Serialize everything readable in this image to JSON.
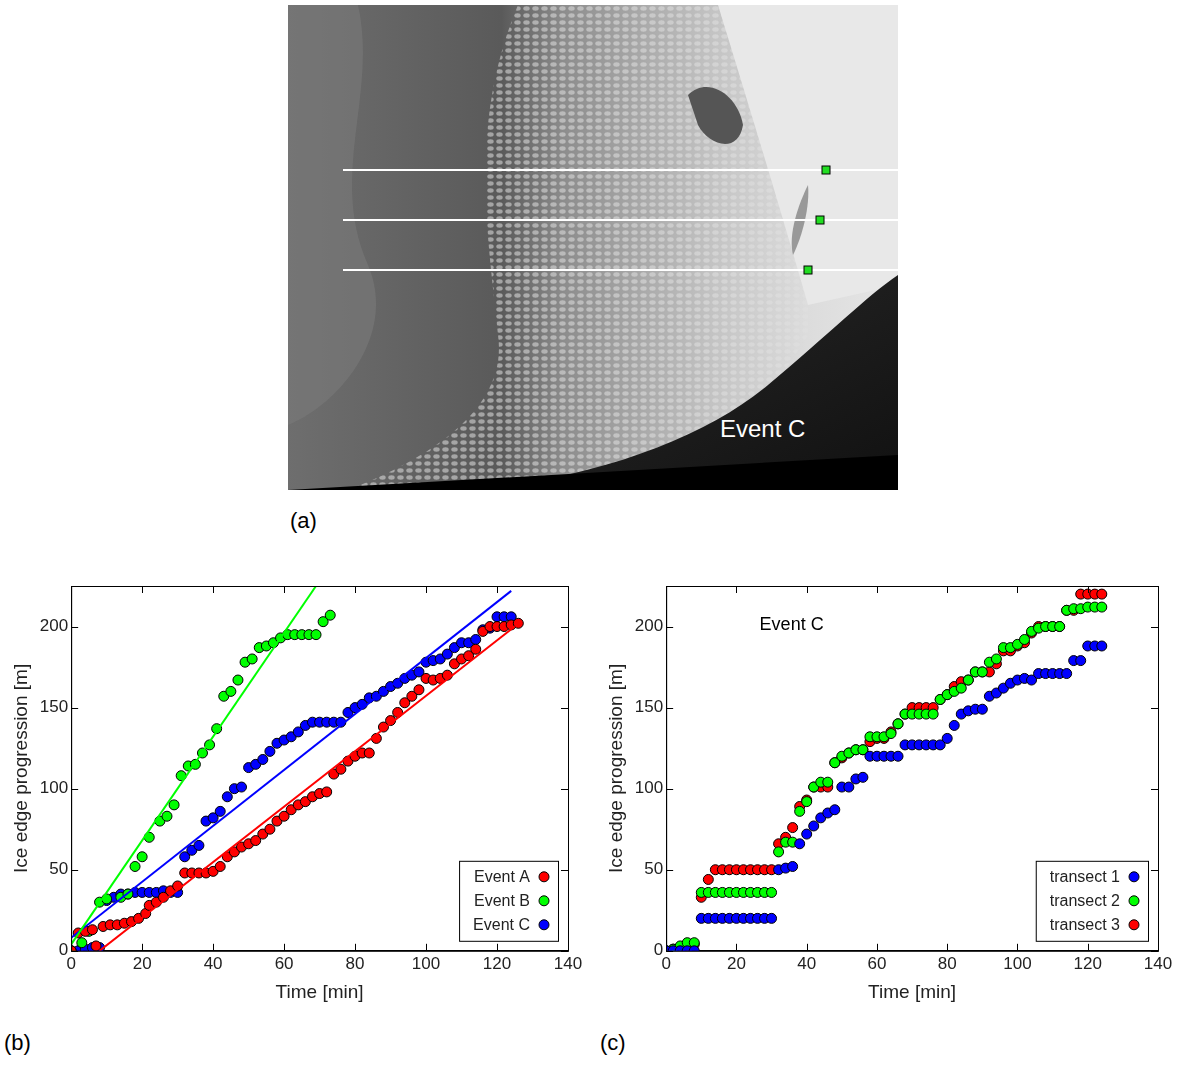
{
  "image_panel": {
    "panel_label": "(a)",
    "annotation": "Event C"
  },
  "chart_data": [
    {
      "type": "scatter",
      "panel_label": "(b)",
      "x_label": "Time [min]",
      "y_label": "Ice edge progression [m]",
      "xlim": [
        0,
        140
      ],
      "xticks": [
        0,
        20,
        40,
        60,
        80,
        100,
        120,
        140
      ],
      "ylim": [
        0,
        225
      ],
      "yticks": [
        0,
        50,
        100,
        150,
        200
      ],
      "grid": false,
      "legend": "lower right",
      "series": [
        {
          "name": "Event A",
          "color": "#ff0000",
          "marker": "circle",
          "x": [
            0,
            2,
            4,
            6,
            7,
            9,
            11,
            13,
            15,
            17,
            19,
            21,
            22,
            24,
            26,
            28,
            30,
            32,
            34,
            36,
            38,
            40,
            42,
            44,
            46,
            48,
            50,
            52,
            54,
            56,
            58,
            60,
            62,
            64,
            66,
            68,
            70,
            72,
            74,
            76,
            78,
            80,
            82,
            84,
            86,
            88,
            90,
            92,
            94,
            96,
            98,
            100,
            102,
            104,
            106,
            108,
            110,
            112,
            114,
            116,
            118,
            120,
            122,
            124,
            126
          ],
          "values": [
            0,
            11,
            12,
            13,
            3,
            15,
            16,
            16,
            17,
            18,
            20,
            23,
            28,
            30,
            33,
            37,
            40,
            48,
            48,
            48,
            48,
            49,
            52,
            58,
            61,
            64,
            66,
            68,
            72,
            75,
            80,
            83,
            87,
            90,
            92,
            95,
            97,
            98,
            109,
            112,
            117,
            120,
            122,
            122,
            131,
            138,
            142,
            147,
            153,
            157,
            161,
            168,
            167,
            168,
            170,
            177,
            180,
            182,
            186,
            197,
            200,
            200,
            200,
            201,
            202
          ]
        },
        {
          "name": "Event B",
          "color": "#00ff00",
          "marker": "circle",
          "x": [
            0,
            3,
            5,
            8,
            10,
            14,
            16,
            18,
            20,
            22,
            25,
            27,
            29,
            31,
            33,
            35,
            37,
            39,
            41,
            43,
            45,
            47,
            49,
            51,
            53,
            55,
            57,
            59,
            61,
            63,
            65,
            67,
            69,
            71,
            73
          ],
          "values": [
            0,
            5,
            12,
            30,
            32,
            33,
            35,
            52,
            58,
            70,
            80,
            83,
            90,
            108,
            114,
            115,
            122,
            127,
            137,
            157,
            160,
            167,
            178,
            180,
            187,
            188,
            190,
            193,
            195,
            195,
            195,
            195,
            195,
            203,
            207
          ]
        },
        {
          "name": "Event C",
          "color": "#0000ff",
          "marker": "circle",
          "x": [
            0,
            2,
            4,
            6,
            8,
            10,
            12,
            14,
            16,
            18,
            20,
            22,
            24,
            26,
            28,
            30,
            32,
            34,
            36,
            38,
            40,
            42,
            44,
            46,
            48,
            50,
            52,
            54,
            56,
            58,
            60,
            62,
            64,
            66,
            68,
            70,
            72,
            74,
            76,
            78,
            80,
            82,
            84,
            86,
            88,
            90,
            92,
            94,
            96,
            98,
            100,
            102,
            104,
            106,
            108,
            110,
            112,
            114,
            116,
            118,
            120,
            122,
            124
          ],
          "values": [
            0,
            0,
            1,
            2,
            2,
            31,
            33,
            35,
            35,
            36,
            36,
            36,
            36,
            37,
            36,
            36,
            58,
            62,
            65,
            80,
            82,
            86,
            95,
            100,
            101,
            113,
            115,
            118,
            123,
            128,
            130,
            132,
            135,
            139,
            141,
            141,
            141,
            141,
            141,
            147,
            150,
            152,
            156,
            157,
            160,
            163,
            165,
            168,
            170,
            172,
            178,
            179,
            180,
            183,
            187,
            190,
            190,
            192,
            198,
            199,
            206,
            206,
            206
          ]
        }
      ],
      "fits": [
        {
          "color": "#ff0000",
          "line_style": "solid",
          "x": [
            8,
            125
          ],
          "values": [
            0,
            200
          ]
        },
        {
          "color": "#00ff00",
          "line_style": "solid",
          "x": [
            0,
            69
          ],
          "values": [
            4,
            225
          ]
        },
        {
          "color": "#0000ff",
          "line_style": "solid",
          "x": [
            0,
            124
          ],
          "values": [
            8,
            222
          ]
        }
      ]
    },
    {
      "type": "scatter",
      "panel_label": "(c)",
      "annotation": "Event C",
      "x_label": "Time [min]",
      "y_label": "Ice edge progression [m]",
      "xlim": [
        0,
        140
      ],
      "xticks": [
        0,
        20,
        40,
        60,
        80,
        100,
        120,
        140
      ],
      "ylim": [
        0,
        225
      ],
      "yticks": [
        0,
        50,
        100,
        150,
        200
      ],
      "grid": false,
      "legend": "lower right",
      "series": [
        {
          "name": "transect 1",
          "color": "#0000ff",
          "marker": "circle",
          "x": [
            0,
            2,
            4,
            6,
            8,
            10,
            12,
            14,
            16,
            18,
            20,
            22,
            24,
            26,
            28,
            30,
            32,
            34,
            36,
            38,
            40,
            42,
            44,
            46,
            48,
            50,
            52,
            54,
            56,
            58,
            60,
            62,
            64,
            66,
            68,
            70,
            72,
            74,
            76,
            78,
            80,
            82,
            84,
            86,
            88,
            90,
            92,
            94,
            96,
            98,
            100,
            102,
            104,
            106,
            108,
            110,
            112,
            114,
            116,
            118,
            120,
            122,
            124
          ],
          "values": [
            0,
            0,
            0,
            0,
            0,
            20,
            20,
            20,
            20,
            20,
            20,
            20,
            20,
            20,
            20,
            20,
            50,
            51,
            52,
            66,
            72,
            77,
            82,
            85,
            87,
            101,
            101,
            106,
            107,
            120,
            120,
            120,
            120,
            120,
            127,
            127,
            127,
            127,
            127,
            127,
            131,
            139,
            146,
            148,
            149,
            149,
            157,
            159,
            162,
            165,
            167,
            168,
            167,
            171,
            171,
            171,
            171,
            171,
            179,
            179,
            188,
            188,
            188
          ]
        },
        {
          "name": "transect 2",
          "color": "#00ff00",
          "marker": "circle",
          "x": [
            0,
            2,
            4,
            6,
            8,
            10,
            12,
            14,
            16,
            18,
            20,
            22,
            24,
            26,
            28,
            30,
            32,
            34,
            36,
            38,
            40,
            42,
            44,
            46,
            48,
            50,
            52,
            54,
            56,
            58,
            60,
            62,
            64,
            66,
            68,
            70,
            72,
            74,
            76,
            78,
            80,
            82,
            84,
            86,
            88,
            90,
            92,
            94,
            96,
            98,
            100,
            102,
            104,
            106,
            108,
            110,
            112,
            114,
            116,
            118,
            120,
            122,
            124
          ],
          "values": [
            0,
            1,
            3,
            5,
            5,
            36,
            36,
            36,
            36,
            36,
            36,
            36,
            36,
            36,
            36,
            36,
            61,
            67,
            67,
            86,
            92,
            101,
            104,
            104,
            116,
            120,
            122,
            124,
            124,
            132,
            132,
            132,
            134,
            140,
            146,
            146,
            146,
            146,
            146,
            155,
            158,
            160,
            162,
            167,
            172,
            172,
            178,
            180,
            187,
            187,
            189,
            192,
            197,
            199,
            200,
            200,
            200,
            210,
            211,
            211,
            212,
            212,
            212
          ]
        },
        {
          "name": "transect 3",
          "color": "#ff0000",
          "marker": "circle",
          "x": [
            0,
            2,
            4,
            6,
            8,
            10,
            12,
            14,
            16,
            18,
            20,
            22,
            24,
            26,
            28,
            30,
            32,
            34,
            36,
            38,
            40,
            42,
            44,
            46,
            48,
            50,
            52,
            54,
            56,
            58,
            60,
            62,
            64,
            66,
            68,
            70,
            72,
            74,
            76,
            78,
            80,
            82,
            84,
            86,
            88,
            90,
            92,
            94,
            96,
            98,
            100,
            102,
            104,
            106,
            108,
            110,
            112,
            114,
            116,
            118,
            120,
            122,
            124
          ],
          "values": [
            0,
            1,
            2,
            3,
            4,
            33,
            44,
            50,
            50,
            50,
            50,
            50,
            50,
            50,
            50,
            50,
            66,
            70,
            76,
            89,
            93,
            101,
            101,
            101,
            116,
            119,
            122,
            124,
            124,
            129,
            131,
            131,
            135,
            140,
            146,
            150,
            150,
            150,
            150,
            155,
            158,
            163,
            166,
            167,
            172,
            172,
            172,
            177,
            185,
            185,
            188,
            190,
            196,
            200,
            200,
            200,
            200,
            210,
            210,
            220,
            220,
            220,
            220
          ]
        }
      ]
    }
  ]
}
